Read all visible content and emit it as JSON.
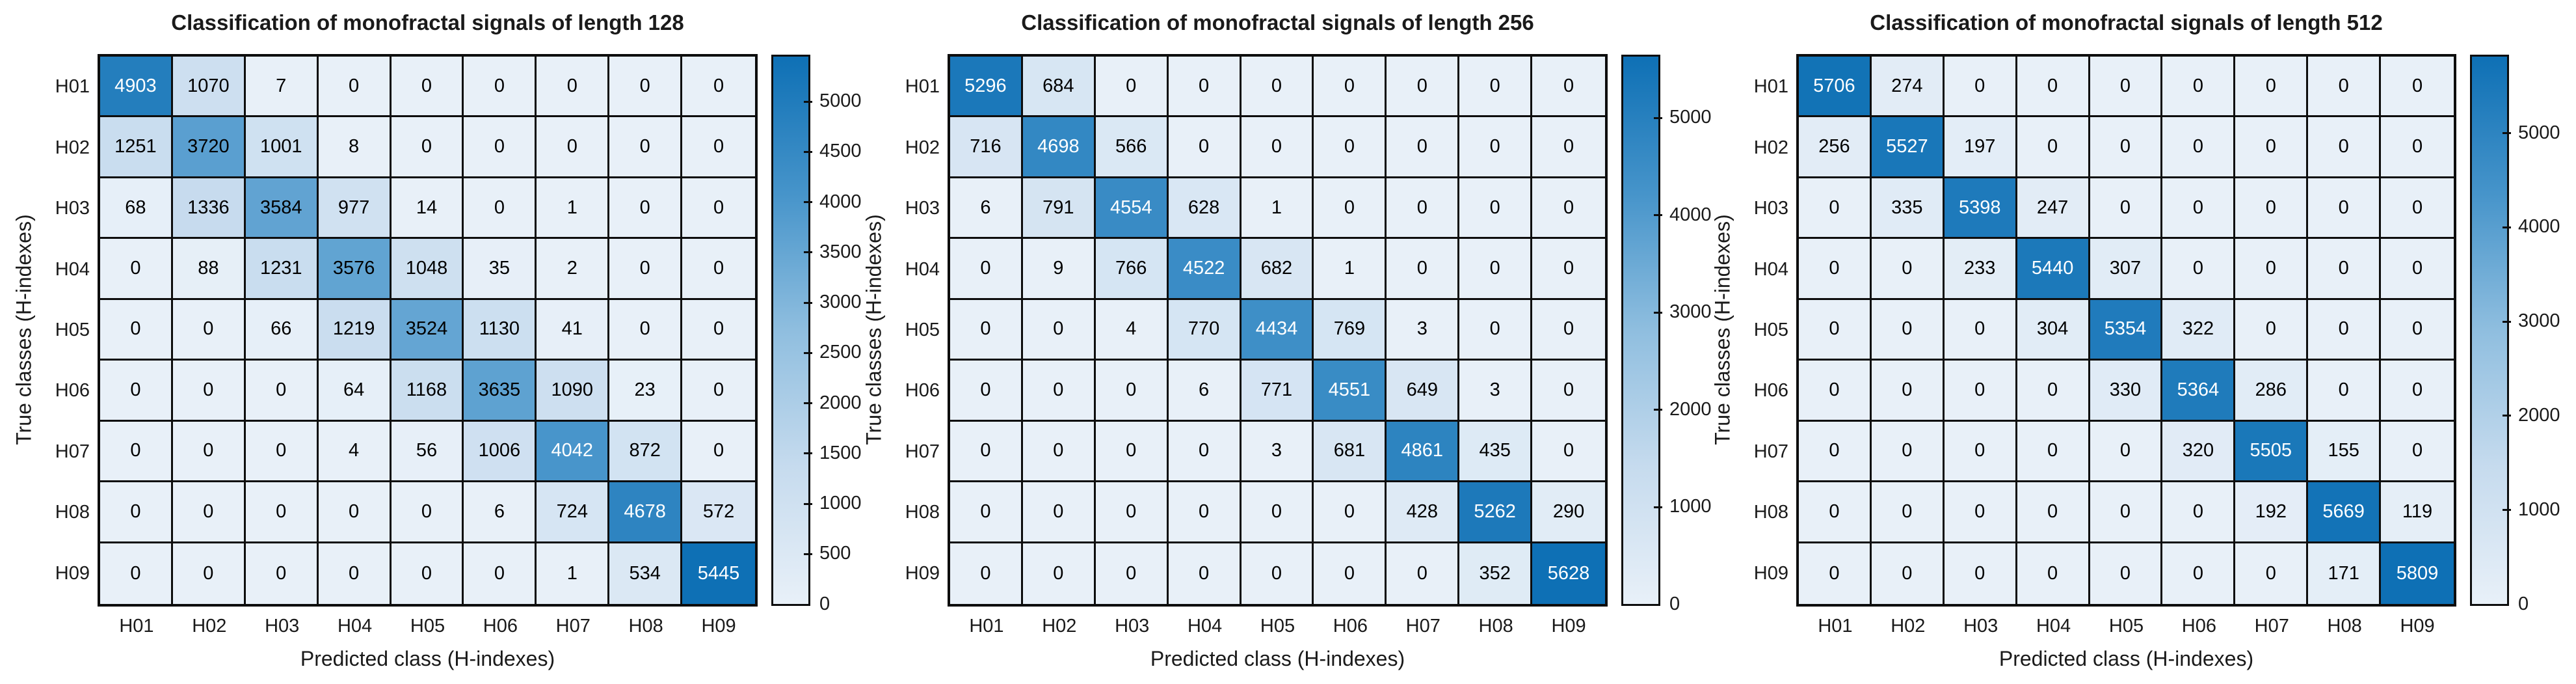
{
  "shared": {
    "y_axis_label": "True classes (H-indexes)",
    "x_axis_label": "Predicted class (H-indexes)",
    "classes": [
      "H01",
      "H02",
      "H03",
      "H04",
      "H05",
      "H06",
      "H07",
      "H08",
      "H09"
    ]
  },
  "style": {
    "background": "#ffffff",
    "grid_line": "#0d0d0d",
    "axis_text": "#1a1a1a",
    "cell_text_dark": "#000000",
    "cell_text_light": "#ffffff",
    "text_white_threshold": 0.69,
    "cmap_stops": [
      [
        0.0,
        "#e8f0f8"
      ],
      [
        0.25,
        "#c6dbee"
      ],
      [
        0.5,
        "#8fbedf"
      ],
      [
        0.75,
        "#4694ca"
      ],
      [
        1.0,
        "#0e70b5"
      ]
    ]
  },
  "chart_data": [
    {
      "type": "heatmap",
      "title": "Classification of monofractal signals of length 128",
      "xlabel": "Predicted class (H-indexes)",
      "ylabel": "True classes (H-indexes)",
      "x_categories": [
        "H01",
        "H02",
        "H03",
        "H04",
        "H05",
        "H06",
        "H07",
        "H08",
        "H09"
      ],
      "y_categories": [
        "H01",
        "H02",
        "H03",
        "H04",
        "H05",
        "H06",
        "H07",
        "H08",
        "H09"
      ],
      "values": [
        [
          4903,
          1070,
          7,
          0,
          0,
          0,
          0,
          0,
          0
        ],
        [
          1251,
          3720,
          1001,
          8,
          0,
          0,
          0,
          0,
          0
        ],
        [
          68,
          1336,
          3584,
          977,
          14,
          0,
          1,
          0,
          0
        ],
        [
          0,
          88,
          1231,
          3576,
          1048,
          35,
          2,
          0,
          0
        ],
        [
          0,
          0,
          66,
          1219,
          3524,
          1130,
          41,
          0,
          0
        ],
        [
          0,
          0,
          0,
          64,
          1168,
          3635,
          1090,
          23,
          0
        ],
        [
          0,
          0,
          0,
          4,
          56,
          1006,
          4042,
          872,
          0
        ],
        [
          0,
          0,
          0,
          0,
          0,
          6,
          724,
          4678,
          572
        ],
        [
          0,
          0,
          0,
          0,
          0,
          0,
          1,
          534,
          5445
        ]
      ],
      "color_axis": [
        0,
        5445
      ],
      "colorbar_ticks": [
        0,
        500,
        1000,
        1500,
        2000,
        2500,
        3000,
        3500,
        4000,
        4500,
        5000
      ],
      "colormap": "Blues",
      "legend_position": "right-colorbar",
      "grid": "on"
    },
    {
      "type": "heatmap",
      "title": "Classification of monofractal signals of length 256",
      "xlabel": "Predicted class (H-indexes)",
      "ylabel": "True classes (H-indexes)",
      "x_categories": [
        "H01",
        "H02",
        "H03",
        "H04",
        "H05",
        "H06",
        "H07",
        "H08",
        "H09"
      ],
      "y_categories": [
        "H01",
        "H02",
        "H03",
        "H04",
        "H05",
        "H06",
        "H07",
        "H08",
        "H09"
      ],
      "values": [
        [
          5296,
          684,
          0,
          0,
          0,
          0,
          0,
          0,
          0
        ],
        [
          716,
          4698,
          566,
          0,
          0,
          0,
          0,
          0,
          0
        ],
        [
          6,
          791,
          4554,
          628,
          1,
          0,
          0,
          0,
          0
        ],
        [
          0,
          9,
          766,
          4522,
          682,
          1,
          0,
          0,
          0
        ],
        [
          0,
          0,
          4,
          770,
          4434,
          769,
          3,
          0,
          0
        ],
        [
          0,
          0,
          0,
          6,
          771,
          4551,
          649,
          3,
          0
        ],
        [
          0,
          0,
          0,
          0,
          3,
          681,
          4861,
          435,
          0
        ],
        [
          0,
          0,
          0,
          0,
          0,
          0,
          428,
          5262,
          290
        ],
        [
          0,
          0,
          0,
          0,
          0,
          0,
          0,
          352,
          5628
        ]
      ],
      "color_axis": [
        0,
        5628
      ],
      "colorbar_ticks": [
        0,
        1000,
        2000,
        3000,
        4000,
        5000
      ],
      "colormap": "Blues",
      "legend_position": "right-colorbar",
      "grid": "on"
    },
    {
      "type": "heatmap",
      "title": "Classification of monofractal signals of length 512",
      "xlabel": "Predicted class (H-indexes)",
      "ylabel": "True classes (H-indexes)",
      "x_categories": [
        "H01",
        "H02",
        "H03",
        "H04",
        "H05",
        "H06",
        "H07",
        "H08",
        "H09"
      ],
      "y_categories": [
        "H01",
        "H02",
        "H03",
        "H04",
        "H05",
        "H06",
        "H07",
        "H08",
        "H09"
      ],
      "values": [
        [
          5706,
          274,
          0,
          0,
          0,
          0,
          0,
          0,
          0
        ],
        [
          256,
          5527,
          197,
          0,
          0,
          0,
          0,
          0,
          0
        ],
        [
          0,
          335,
          5398,
          247,
          0,
          0,
          0,
          0,
          0
        ],
        [
          0,
          0,
          233,
          5440,
          307,
          0,
          0,
          0,
          0
        ],
        [
          0,
          0,
          0,
          304,
          5354,
          322,
          0,
          0,
          0
        ],
        [
          0,
          0,
          0,
          0,
          330,
          5364,
          286,
          0,
          0
        ],
        [
          0,
          0,
          0,
          0,
          0,
          320,
          5505,
          155,
          0
        ],
        [
          0,
          0,
          0,
          0,
          0,
          0,
          192,
          5669,
          119
        ],
        [
          0,
          0,
          0,
          0,
          0,
          0,
          0,
          171,
          5809
        ]
      ],
      "color_axis": [
        0,
        5809
      ],
      "colorbar_ticks": [
        0,
        1000,
        2000,
        3000,
        4000,
        5000
      ],
      "colormap": "Blues",
      "legend_position": "right-colorbar",
      "grid": "on"
    }
  ]
}
